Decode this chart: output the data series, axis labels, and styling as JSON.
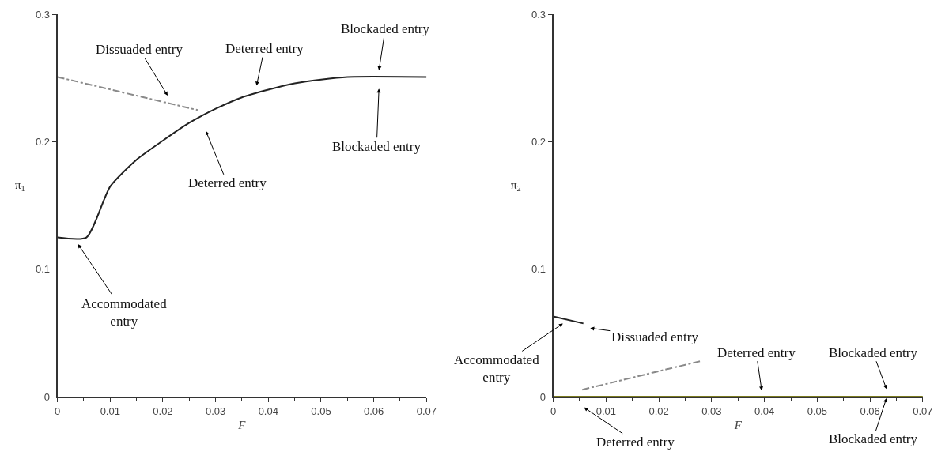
{
  "chart_data": [
    {
      "type": "line",
      "xlabel": "F",
      "ylabel": "π$_{1}$",
      "xlim": [
        0,
        0.07
      ],
      "ylim": [
        0,
        0.3
      ],
      "xticks": [
        0,
        0.01,
        0.02,
        0.03,
        0.04,
        0.05,
        0.06,
        0.07
      ],
      "yticks": [
        0,
        0.1,
        0.2,
        0.3
      ],
      "marker": "none",
      "series": [
        {
          "color": "#222222",
          "line_style": "solid",
          "x": [
            0,
            0.0055,
            0.01,
            0.015,
            0.02,
            0.025,
            0.03,
            0.035,
            0.04,
            0.045,
            0.05,
            0.055,
            0.07
          ],
          "values": [
            0.125,
            0.125,
            0.165,
            0.186,
            0.201,
            0.215,
            0.226,
            0.235,
            0.241,
            0.246,
            0.249,
            0.251,
            0.251
          ]
        },
        {
          "color": "#8a8a8a",
          "line_style": "dashed",
          "x": [
            0,
            0.0266
          ],
          "values": [
            0.251,
            0.225
          ]
        }
      ],
      "annotations": [
        "Dissuaded entry",
        "Deterred entry",
        "Blockaded entry",
        "Blockaded entry",
        "Deterred entry",
        "Accommodated\nentry"
      ]
    },
    {
      "type": "line",
      "xlabel": "F",
      "ylabel": "π$_{2}$",
      "xlim": [
        0,
        0.07
      ],
      "ylim": [
        0,
        0.3
      ],
      "xticks": [
        0,
        0.01,
        0.02,
        0.03,
        0.04,
        0.05,
        0.06,
        0.07
      ],
      "yticks": [
        0,
        0.1,
        0.2,
        0.3
      ],
      "marker": "none",
      "series": [
        {
          "color": "#222222",
          "line_style": "solid",
          "x": [
            0,
            0.0057
          ],
          "values": [
            0.063,
            0.0575
          ]
        },
        {
          "color": "#8a8a8a",
          "line_style": "dashed",
          "x": [
            0.0055,
            0.028
          ],
          "values": [
            0.0055,
            0.028
          ]
        },
        {
          "color": "#7a7a20",
          "line_style": "solid",
          "x": [
            0,
            0.07
          ],
          "values": [
            0,
            0
          ]
        }
      ],
      "annotations": [
        "Accommodated\nentry",
        "Dissuaded entry",
        "Deterred entry",
        "Blockaded entry",
        "Blockaded entry",
        "Deterred entry"
      ]
    }
  ]
}
